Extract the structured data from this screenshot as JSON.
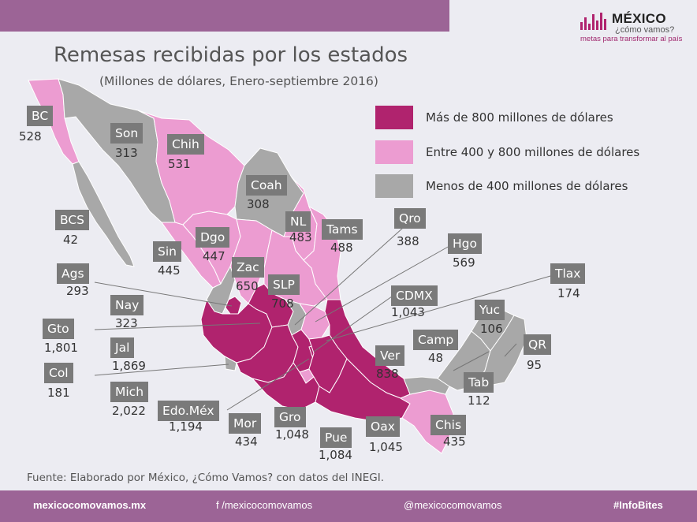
{
  "header": {
    "brand_name": "MÉXICO",
    "brand_sub": "¿cómo vamos?",
    "brand_tagline": "metas para transformar al país",
    "title": "Remesas recibidas por los estados",
    "subtitle": "(Millones de dólares, Enero-septiembre 2016)"
  },
  "colors": {
    "high": "#b0236e",
    "mid": "#ec9cd1",
    "low": "#a8a8a8",
    "label_bg": "#7a7a7a",
    "bar": "#9c6496"
  },
  "legend": [
    {
      "label": "Más de 800 millones de dólares",
      "color": "#b0236e"
    },
    {
      "label": "Entre 400 y 800 millones  de  dólares",
      "color": "#ec9cd1"
    },
    {
      "label": "Menos de 400 millones de dólares",
      "color": "#a8a8a8"
    }
  ],
  "states": [
    {
      "abbr": "BC",
      "value": "528"
    },
    {
      "abbr": "Son",
      "value": "313"
    },
    {
      "abbr": "Chih",
      "value": "531"
    },
    {
      "abbr": "Coah",
      "value": "308"
    },
    {
      "abbr": "BCS",
      "value": "42"
    },
    {
      "abbr": "NL",
      "value": "483"
    },
    {
      "abbr": "Tams",
      "value": "488"
    },
    {
      "abbr": "Dgo",
      "value": "447"
    },
    {
      "abbr": "Sin",
      "value": "445"
    },
    {
      "abbr": "Zac",
      "value": "650"
    },
    {
      "abbr": "Ags",
      "value": "293"
    },
    {
      "abbr": "SLP",
      "value": "708"
    },
    {
      "abbr": "Qro",
      "value": "388"
    },
    {
      "abbr": "Hgo",
      "value": "569"
    },
    {
      "abbr": "Nay",
      "value": "323"
    },
    {
      "abbr": "Gto",
      "value": "1,801"
    },
    {
      "abbr": "Jal",
      "value": "1,869"
    },
    {
      "abbr": "Col",
      "value": "181"
    },
    {
      "abbr": "CDMX",
      "value": "1,043"
    },
    {
      "abbr": "Tlax",
      "value": "174"
    },
    {
      "abbr": "Yuc",
      "value": "106"
    },
    {
      "abbr": "Camp",
      "value": "48"
    },
    {
      "abbr": "QR",
      "value": "95"
    },
    {
      "abbr": "Ver",
      "value": "838"
    },
    {
      "abbr": "Tab",
      "value": "112"
    },
    {
      "abbr": "Mich",
      "value": "2,022"
    },
    {
      "abbr": "Edo.Méx",
      "value": "1,194"
    },
    {
      "abbr": "Mor",
      "value": "434"
    },
    {
      "abbr": "Gro",
      "value": "1,048"
    },
    {
      "abbr": "Pue",
      "value": "1,084"
    },
    {
      "abbr": "Oax",
      "value": "1,045"
    },
    {
      "abbr": "Chis",
      "value": "435"
    }
  ],
  "source": "Fuente: Elaborado por México, ¿Cómo Vamos? con datos del INEGI.",
  "footer": {
    "site": "mexicocomovamos.mx",
    "facebook": "f  /mexicocomovamos",
    "twitter": "@mexicocomovamos",
    "hashtag": "#InfoBites"
  }
}
